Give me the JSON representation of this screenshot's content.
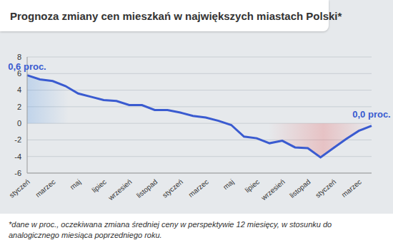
{
  "chart_data": {
    "type": "line",
    "title": "Prognoza zmiany cen mieszkań w największych miastach Polski*",
    "footnote": "*dane w proc., oczekiwana zmiana średniej ceny w perspektywie 12 miesięcy, w stosunku do analogicznego miesiąca poprzedniego roku.",
    "annotations": [
      "0,6 proc.",
      "0,0 proc."
    ],
    "categories": [
      "styczeń",
      null,
      "marzec",
      null,
      "maj",
      null,
      "lipiec",
      null,
      "wrzesień",
      null,
      "listopad",
      null,
      "styczeń",
      null,
      "marzec",
      null,
      "maj",
      null,
      "lipiec",
      null,
      "wrzesień",
      null,
      "listopad",
      null,
      "styczeń",
      null,
      "marzec",
      null
    ],
    "values": [
      5.8,
      5.3,
      5.1,
      4.5,
      3.6,
      3.2,
      2.8,
      2.7,
      2.2,
      2.2,
      1.6,
      1.6,
      1.3,
      0.9,
      0.7,
      0.3,
      -0.2,
      -1.6,
      -1.8,
      -2.4,
      -2.1,
      -2.9,
      -3.0,
      -4.1,
      -3.0,
      -1.9,
      -0.9,
      -0.3
    ],
    "color": "#3a5bd0",
    "ylim": [
      -6,
      8
    ],
    "yticks": [
      -6,
      -4,
      -2,
      0,
      2,
      4,
      6,
      8
    ],
    "grid": true
  }
}
